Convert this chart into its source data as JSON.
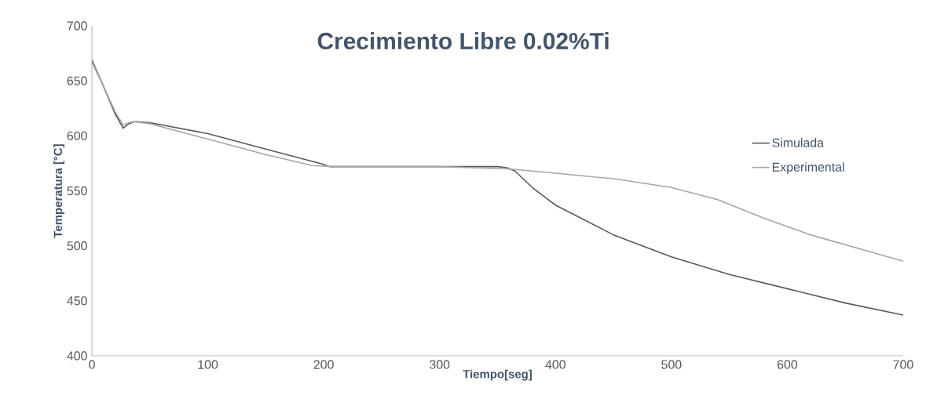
{
  "chart_data": {
    "type": "line",
    "title": "Crecimiento Libre 0.02%Ti",
    "xlabel": "Tiempo[seg]",
    "ylabel": "Temperatura [°C]",
    "xlim": [
      0,
      700
    ],
    "xticks": [
      0,
      100,
      200,
      300,
      400,
      500,
      600,
      700
    ],
    "ylim": [
      400,
      700
    ],
    "yticks": [
      400,
      450,
      500,
      550,
      600,
      650,
      700
    ],
    "grid": false,
    "legend": "right",
    "marker": "none",
    "line_style": "solid",
    "series": [
      {
        "name": "Simulada",
        "color": "#595959",
        "x": [
          0,
          10,
          20,
          27,
          32,
          37,
          50,
          100,
          150,
          200,
          205,
          250,
          300,
          350,
          358,
          365,
          380,
          400,
          450,
          500,
          550,
          600,
          650,
          700
        ],
        "values": [
          668,
          645,
          620,
          607,
          611,
          613,
          612,
          602,
          588,
          574,
          572,
          572,
          572,
          572,
          571,
          568,
          553,
          537,
          510,
          490,
          474,
          461,
          448,
          437
        ]
      },
      {
        "name": "Experimental",
        "color": "#a6a6a6",
        "x": [
          0,
          10,
          20,
          27,
          32,
          37,
          50,
          100,
          150,
          190,
          210,
          300,
          360,
          400,
          450,
          500,
          540,
          580,
          620,
          660,
          700
        ],
        "values": [
          670,
          645,
          622,
          610,
          612,
          613,
          611,
          597,
          583,
          573,
          572,
          572,
          570,
          566,
          561,
          553,
          542,
          525,
          510,
          498,
          486
        ]
      }
    ]
  }
}
